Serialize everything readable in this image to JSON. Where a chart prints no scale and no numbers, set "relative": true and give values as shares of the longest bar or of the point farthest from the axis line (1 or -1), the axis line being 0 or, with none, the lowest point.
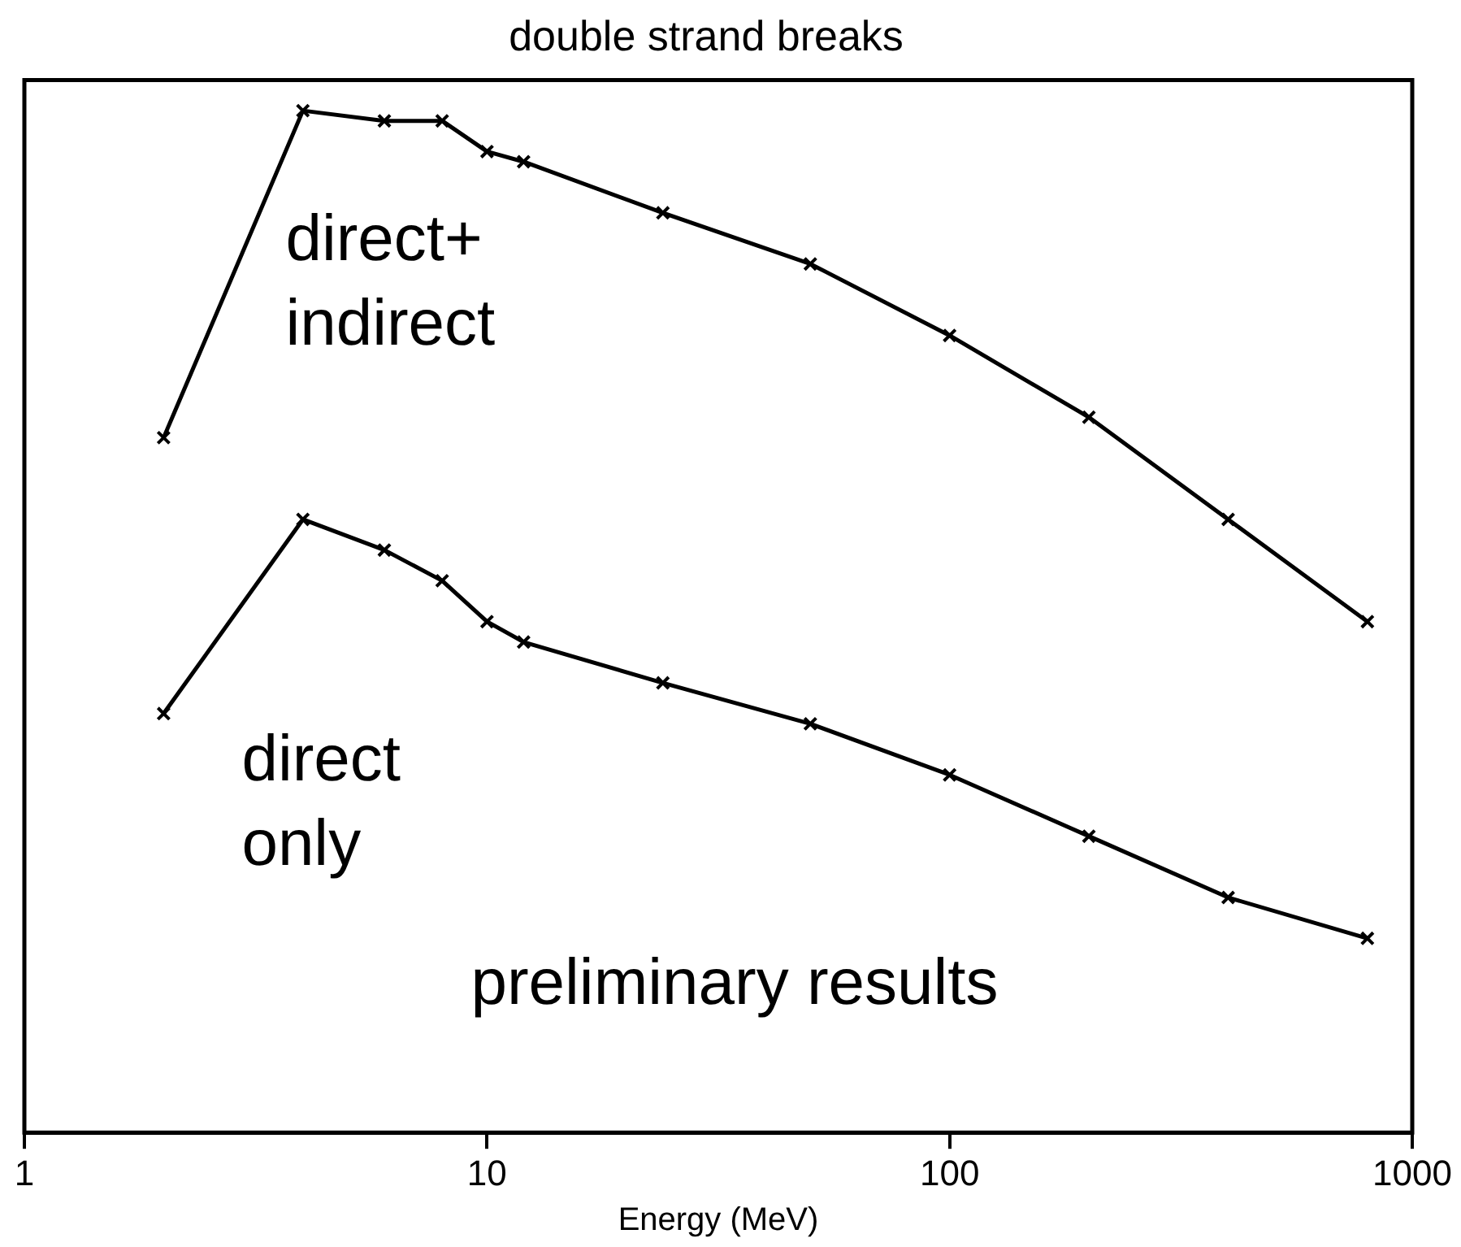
{
  "chart_data": {
    "type": "line",
    "title": "double strand breaks",
    "xlabel": "Energy (MeV)",
    "relative": true,
    "log": "x",
    "xlim": [
      1,
      1000
    ],
    "xticks": [
      1,
      10,
      100,
      1000
    ],
    "grid": false,
    "legend": false,
    "marker": "cross",
    "line_style": "solid",
    "x": [
      2,
      4,
      6,
      8,
      10,
      12,
      24,
      50,
      100,
      200,
      400,
      800
    ],
    "series": [
      {
        "name": "direct+ indirect",
        "color": "#000000",
        "values": [
          0.68,
          1,
          0.99,
          0.99,
          0.96,
          0.95,
          0.9,
          0.85,
          0.78,
          0.7,
          0.6,
          0.5
        ]
      },
      {
        "name": "direct only",
        "color": "#000000",
        "values": [
          0.41,
          0.6,
          0.57,
          0.54,
          0.5,
          0.48,
          0.44,
          0.4,
          0.35,
          0.29,
          0.23,
          0.19
        ]
      }
    ],
    "annotations": [
      "preliminary results"
    ]
  }
}
